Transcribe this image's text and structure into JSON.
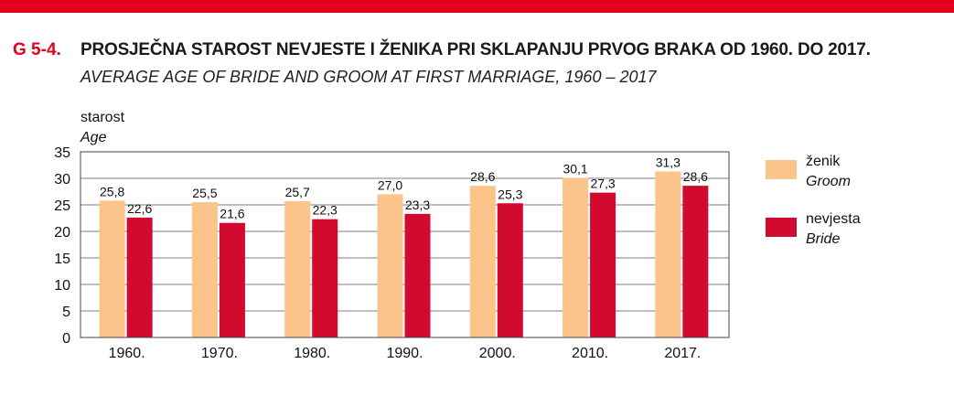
{
  "header": {
    "figure_number": "G 5-4.",
    "title": "PROSJEČNA STAROST NEVJESTE I ŽENIKA PRI SKLAPANJU PRVOG BRAKA OD 1960. DO 2017.",
    "subtitle": "AVERAGE AGE OF BRIDE AND GROOM AT FIRST MARRIAGE, 1960 – 2017"
  },
  "colors": {
    "accent": "#e3001b",
    "groom": "#fbc48b",
    "bride": "#d10a2e"
  },
  "chart_data": {
    "type": "bar",
    "ylabel": "starost",
    "ylabel_en": "Age",
    "xlabel": "",
    "categories": [
      "1960.",
      "1970.",
      "1980.",
      "1990.",
      "2000.",
      "2010.",
      "2017."
    ],
    "series": [
      {
        "name": "ženik",
        "name_en": "Groom",
        "values": [
          25.8,
          25.5,
          25.7,
          27.0,
          28.6,
          30.1,
          31.3
        ],
        "labels": [
          "25,8",
          "25,5",
          "25,7",
          "27,0",
          "28,6",
          "30,1",
          "31,3"
        ]
      },
      {
        "name": "nevjesta",
        "name_en": "Bride",
        "values": [
          22.6,
          21.6,
          22.3,
          23.3,
          25.3,
          27.3,
          28.6
        ],
        "labels": [
          "22,6",
          "21,6",
          "22,3",
          "23,3",
          "25,3",
          "27,3",
          "28,6"
        ]
      }
    ],
    "ylim": [
      0,
      35
    ],
    "yticks": [
      0,
      5,
      10,
      15,
      20,
      25,
      30,
      35
    ],
    "grid": true,
    "legend": "right"
  }
}
